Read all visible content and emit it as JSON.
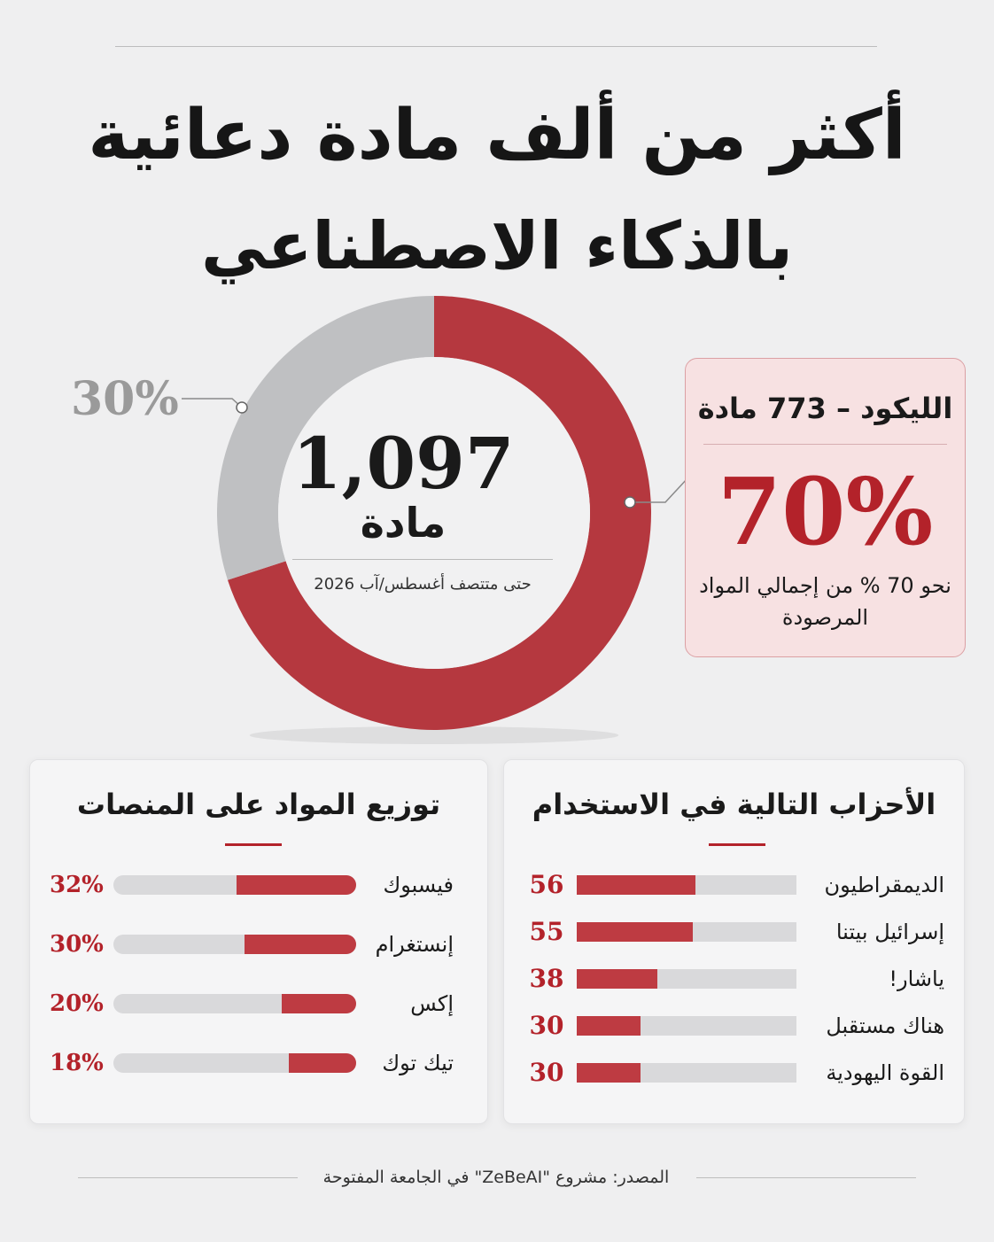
{
  "title": {
    "line1": "أكثر من ألف مادة دعائية",
    "line2": "بالذكاء الاصطناعي"
  },
  "donut": {
    "total_value": "1,097",
    "total_unit": "مادة",
    "note": "حتى متتصف أغسطس/آب 2026",
    "gray_label": "30%"
  },
  "callout": {
    "title": "الليكود – 773 مادة",
    "percent": "70%",
    "text": "نحو 70 % من إجمالي المواد المرصودة"
  },
  "platforms": {
    "title": "توزيع المواد على المنصات",
    "items": [
      {
        "label": "فيسبوك",
        "value": "32%"
      },
      {
        "label": "إنستغرام",
        "value": "30%"
      },
      {
        "label": "إكس",
        "value": "20%"
      },
      {
        "label": "تيك توك",
        "value": "18%"
      }
    ]
  },
  "parties": {
    "title": "الأحزاب التالية في الاستخدام",
    "items": [
      {
        "label": "الديمقراطيون",
        "value": "56"
      },
      {
        "label": "إسرائيل بيتنا",
        "value": "55"
      },
      {
        "label": "ياشار!",
        "value": "38"
      },
      {
        "label": "هناك مستقبل",
        "value": "30"
      },
      {
        "label": "القوة اليهودية",
        "value": "30"
      }
    ]
  },
  "footer": "المصدر: مشروع \"ZeBeAI\" في الجامعة المفتوحة",
  "colors": {
    "accent": "#b3222a",
    "bar_fill": "#be3b42",
    "donut_red": "#b5383f",
    "donut_gray": "#bfc0c2",
    "track": "#d9d9db",
    "callout_bg": "#f7e1e2"
  },
  "chart_data": [
    {
      "type": "pie",
      "categories": [
        "الليكود",
        ""
      ],
      "values": [
        70,
        30
      ],
      "unit": "%"
    },
    {
      "type": "bar",
      "title": "توزيع المواد على المنصات",
      "categories": [
        "فيسبوك",
        "إنستغرام",
        "إكس",
        "تيك توك"
      ],
      "values": [
        32,
        30,
        20,
        18
      ],
      "unit": "%",
      "xlim": [
        0,
        65
      ]
    },
    {
      "type": "bar",
      "title": "الأحزاب التالية في الاستخدام",
      "categories": [
        "الديمقراطيون",
        "إسرائيل بيتنا",
        "ياشار!",
        "هناك مستقبل",
        "القوة اليهودية"
      ],
      "values": [
        56,
        55,
        38,
        30,
        30
      ],
      "xlim": [
        0,
        104
      ]
    }
  ]
}
